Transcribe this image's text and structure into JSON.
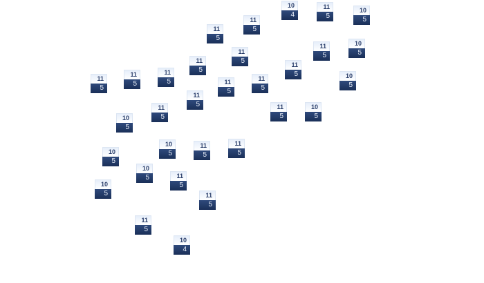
{
  "colors": {
    "badge_top": "#eef3fb",
    "badge_bottom": "#23396a",
    "badge_top_text": "#2a3e6a",
    "badge_bottom_text": "#e8eef8"
  },
  "badges": [
    {
      "top": "10",
      "bottom": "4"
    },
    {
      "top": "11",
      "bottom": "5"
    },
    {
      "top": "10",
      "bottom": "5"
    },
    {
      "top": "11",
      "bottom": "5"
    },
    {
      "top": "11",
      "bottom": "5"
    },
    {
      "top": "11",
      "bottom": "5"
    },
    {
      "top": "11",
      "bottom": "5"
    },
    {
      "top": "10",
      "bottom": "5"
    },
    {
      "top": "11",
      "bottom": "5"
    },
    {
      "top": "11",
      "bottom": "5"
    },
    {
      "top": "11",
      "bottom": "5"
    },
    {
      "top": "11",
      "bottom": "5"
    },
    {
      "top": "11",
      "bottom": "5"
    },
    {
      "top": "11",
      "bottom": "5"
    },
    {
      "top": "11",
      "bottom": "5"
    },
    {
      "top": "10",
      "bottom": "5"
    },
    {
      "top": "11",
      "bottom": "5"
    },
    {
      "top": "11",
      "bottom": "5"
    },
    {
      "top": "11",
      "bottom": "5"
    },
    {
      "top": "10",
      "bottom": "5"
    },
    {
      "top": "10",
      "bottom": "5"
    },
    {
      "top": "10",
      "bottom": "5"
    },
    {
      "top": "11",
      "bottom": "5"
    },
    {
      "top": "11",
      "bottom": "5"
    },
    {
      "top": "10",
      "bottom": "5"
    },
    {
      "top": "10",
      "bottom": "5"
    },
    {
      "top": "11",
      "bottom": "5"
    },
    {
      "top": "10",
      "bottom": "5"
    },
    {
      "top": "11",
      "bottom": "5"
    },
    {
      "top": "11",
      "bottom": "5"
    },
    {
      "top": "10",
      "bottom": "4"
    }
  ]
}
